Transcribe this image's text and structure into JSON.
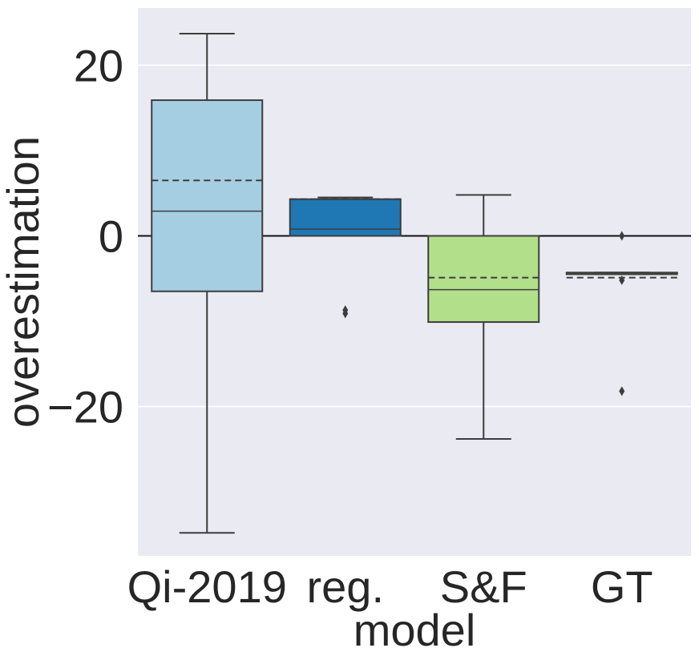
{
  "chart_data": {
    "type": "boxplot",
    "title": "",
    "xlabel": "model",
    "ylabel": "overestimation",
    "ylim": [
      -37.5,
      26.7
    ],
    "yticks": [
      -20,
      0,
      20
    ],
    "ytick_labels": [
      "−20",
      "0",
      "20"
    ],
    "reference_line": 0,
    "grid": true,
    "background": "#eaeaf2",
    "categories": [
      "Qi-2019",
      "reg.",
      "S&F",
      "GT"
    ],
    "boxes": [
      {
        "name": "Qi-2019",
        "color": "#a6cee3",
        "whisker_low": -34.8,
        "q1": -6.5,
        "median": 2.9,
        "mean": 6.5,
        "q3": 15.9,
        "whisker_high": 23.7,
        "outliers": []
      },
      {
        "name": "reg.",
        "color": "#1f78b4",
        "whisker_low": 0.0,
        "q1": 0.0,
        "median": 0.8,
        "mean": 4.3,
        "q3": 4.3,
        "whisker_high": 4.5,
        "outliers": [
          -8.7,
          -9.1
        ]
      },
      {
        "name": "S&F",
        "color": "#b2df8a",
        "whisker_low": -23.8,
        "q1": -10.1,
        "median": -6.3,
        "mean": -4.9,
        "q3": 0.0,
        "whisker_high": 4.8,
        "outliers": []
      },
      {
        "name": "GT",
        "color": "#33a02c",
        "whisker_low": -4.5,
        "q1": -4.5,
        "median": -4.3,
        "mean": -4.9,
        "q3": -4.3,
        "whisker_high": -4.3,
        "outliers": [
          0.0,
          -5.2,
          -18.2
        ]
      }
    ]
  }
}
